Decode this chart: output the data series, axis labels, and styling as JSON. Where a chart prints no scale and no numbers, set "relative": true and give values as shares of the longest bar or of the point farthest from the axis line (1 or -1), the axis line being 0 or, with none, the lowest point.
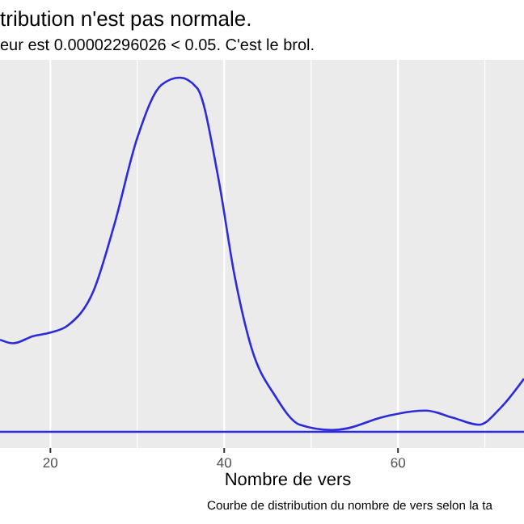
{
  "chart_data": {
    "type": "line",
    "title": "tribution n'est pas normale.",
    "subtitle": "eur est  0.00002296026  < 0.05. C'est le brol.",
    "xlabel": "Nombre de vers",
    "annotations": [
      "Courbe de distribution du nombre de vers selon la ta"
    ],
    "relative": true,
    "xlim": [
      14.2,
      74.5
    ],
    "xticks": [
      20,
      40,
      60
    ],
    "grid": "x",
    "ref_lines": [
      {
        "axis": "y",
        "value": 0,
        "color": "#2b2bd9"
      }
    ],
    "series": [
      {
        "color": "#2b2bd9",
        "x": [
          14.2,
          15.7,
          18.0,
          20,
          22.0,
          25.0,
          27.3,
          30.0,
          32.8,
          34.9,
          36.9,
          39.3,
          41.2,
          43.1,
          45.9,
          48.7,
          52.4,
          54.2,
          58.0,
          63.2,
          66.3,
          69.3,
          71.9,
          74.5
        ],
        "values": [
          0.26,
          0.25,
          0.27,
          0.28,
          0.3,
          0.4,
          0.58,
          0.83,
          0.98,
          1,
          0.97,
          0.72,
          0.44,
          0.24,
          0.1,
          0.02,
          0.005,
          0.01,
          0.04,
          0.06,
          0.04,
          0.02,
          0.07,
          0.15
        ]
      }
    ]
  }
}
